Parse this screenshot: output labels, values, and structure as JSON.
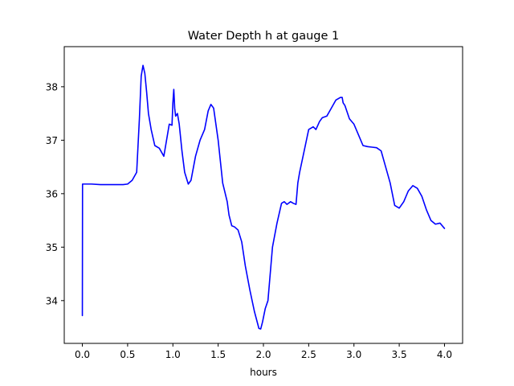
{
  "chart_data": {
    "type": "line",
    "title": "Water Depth h at gauge 1",
    "xlabel": "hours",
    "ylabel": "",
    "xlim": [
      -0.2,
      4.2
    ],
    "ylim": [
      33.2,
      38.75
    ],
    "xticks": [
      0.0,
      0.5,
      1.0,
      1.5,
      2.0,
      2.5,
      3.0,
      3.5,
      4.0
    ],
    "xtick_labels": [
      "0.0",
      "0.5",
      "1.0",
      "1.5",
      "2.0",
      "2.5",
      "3.0",
      "3.5",
      "4.0"
    ],
    "yticks": [
      34,
      35,
      36,
      37,
      38
    ],
    "ytick_labels": [
      "34",
      "35",
      "36",
      "37",
      "38"
    ],
    "grid": false,
    "series": [
      {
        "name": "",
        "color": "#0000ff",
        "x": [
          0.0,
          0.002,
          0.004,
          0.1,
          0.2,
          0.3,
          0.4,
          0.45,
          0.5,
          0.55,
          0.6,
          0.63,
          0.65,
          0.67,
          0.69,
          0.71,
          0.73,
          0.76,
          0.8,
          0.85,
          0.9,
          0.93,
          0.96,
          0.99,
          1.0,
          1.01,
          1.02,
          1.03,
          1.05,
          1.07,
          1.1,
          1.13,
          1.17,
          1.2,
          1.25,
          1.3,
          1.35,
          1.39,
          1.42,
          1.45,
          1.5,
          1.55,
          1.6,
          1.62,
          1.65,
          1.68,
          1.72,
          1.76,
          1.8,
          1.85,
          1.9,
          1.95,
          1.97,
          1.99,
          2.02,
          2.05,
          2.1,
          2.15,
          2.2,
          2.23,
          2.26,
          2.3,
          2.33,
          2.36,
          2.38,
          2.4,
          2.45,
          2.5,
          2.55,
          2.58,
          2.62,
          2.65,
          2.7,
          2.75,
          2.8,
          2.85,
          2.87,
          2.88,
          2.9,
          2.95,
          3.0,
          3.05,
          3.1,
          3.15,
          3.2,
          3.25,
          3.3,
          3.35,
          3.4,
          3.45,
          3.5,
          3.55,
          3.6,
          3.65,
          3.7,
          3.75,
          3.8,
          3.85,
          3.9,
          3.95,
          4.0
        ],
        "y": [
          33.72,
          36.18,
          36.18,
          36.18,
          36.17,
          36.17,
          36.17,
          36.17,
          36.18,
          36.25,
          36.4,
          37.4,
          38.2,
          38.4,
          38.25,
          37.9,
          37.5,
          37.2,
          36.9,
          36.85,
          36.7,
          37.0,
          37.3,
          37.28,
          37.7,
          37.95,
          37.6,
          37.45,
          37.5,
          37.3,
          36.8,
          36.4,
          36.18,
          36.25,
          36.7,
          37.0,
          37.2,
          37.55,
          37.67,
          37.6,
          37.0,
          36.2,
          35.85,
          35.6,
          35.4,
          35.38,
          35.32,
          35.1,
          34.65,
          34.2,
          33.8,
          33.48,
          33.47,
          33.6,
          33.85,
          34.0,
          35.0,
          35.45,
          35.82,
          35.85,
          35.8,
          35.85,
          35.82,
          35.8,
          36.2,
          36.4,
          36.8,
          37.2,
          37.25,
          37.2,
          37.35,
          37.42,
          37.45,
          37.6,
          37.75,
          37.8,
          37.8,
          37.7,
          37.65,
          37.4,
          37.3,
          37.1,
          36.9,
          36.88,
          36.87,
          36.86,
          36.8,
          36.5,
          36.2,
          35.78,
          35.73,
          35.85,
          36.05,
          36.15,
          36.1,
          35.95,
          35.7,
          35.5,
          35.43,
          35.45,
          35.35
        ]
      }
    ]
  }
}
